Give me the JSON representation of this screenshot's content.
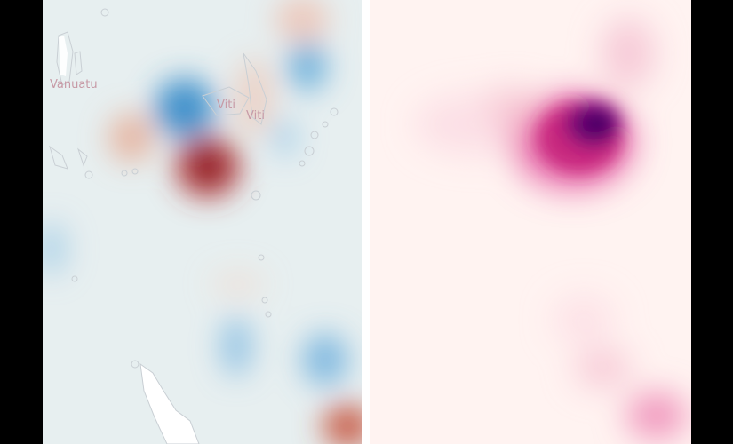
{
  "left_map": {
    "background_color": "#e7eff0",
    "diverging_colors": {
      "negative": "#2f7fbf",
      "positive": "#9e1a2a"
    },
    "labels": {
      "vanuatu": "Vanuatu",
      "viti_1": "Viti",
      "viti_2": "Viti"
    }
  },
  "right_map": {
    "background_color": "#fff3f1",
    "density_colors": {
      "low": "#f6c6d3",
      "mid": "#c8287e",
      "high": "#4a0066"
    }
  }
}
